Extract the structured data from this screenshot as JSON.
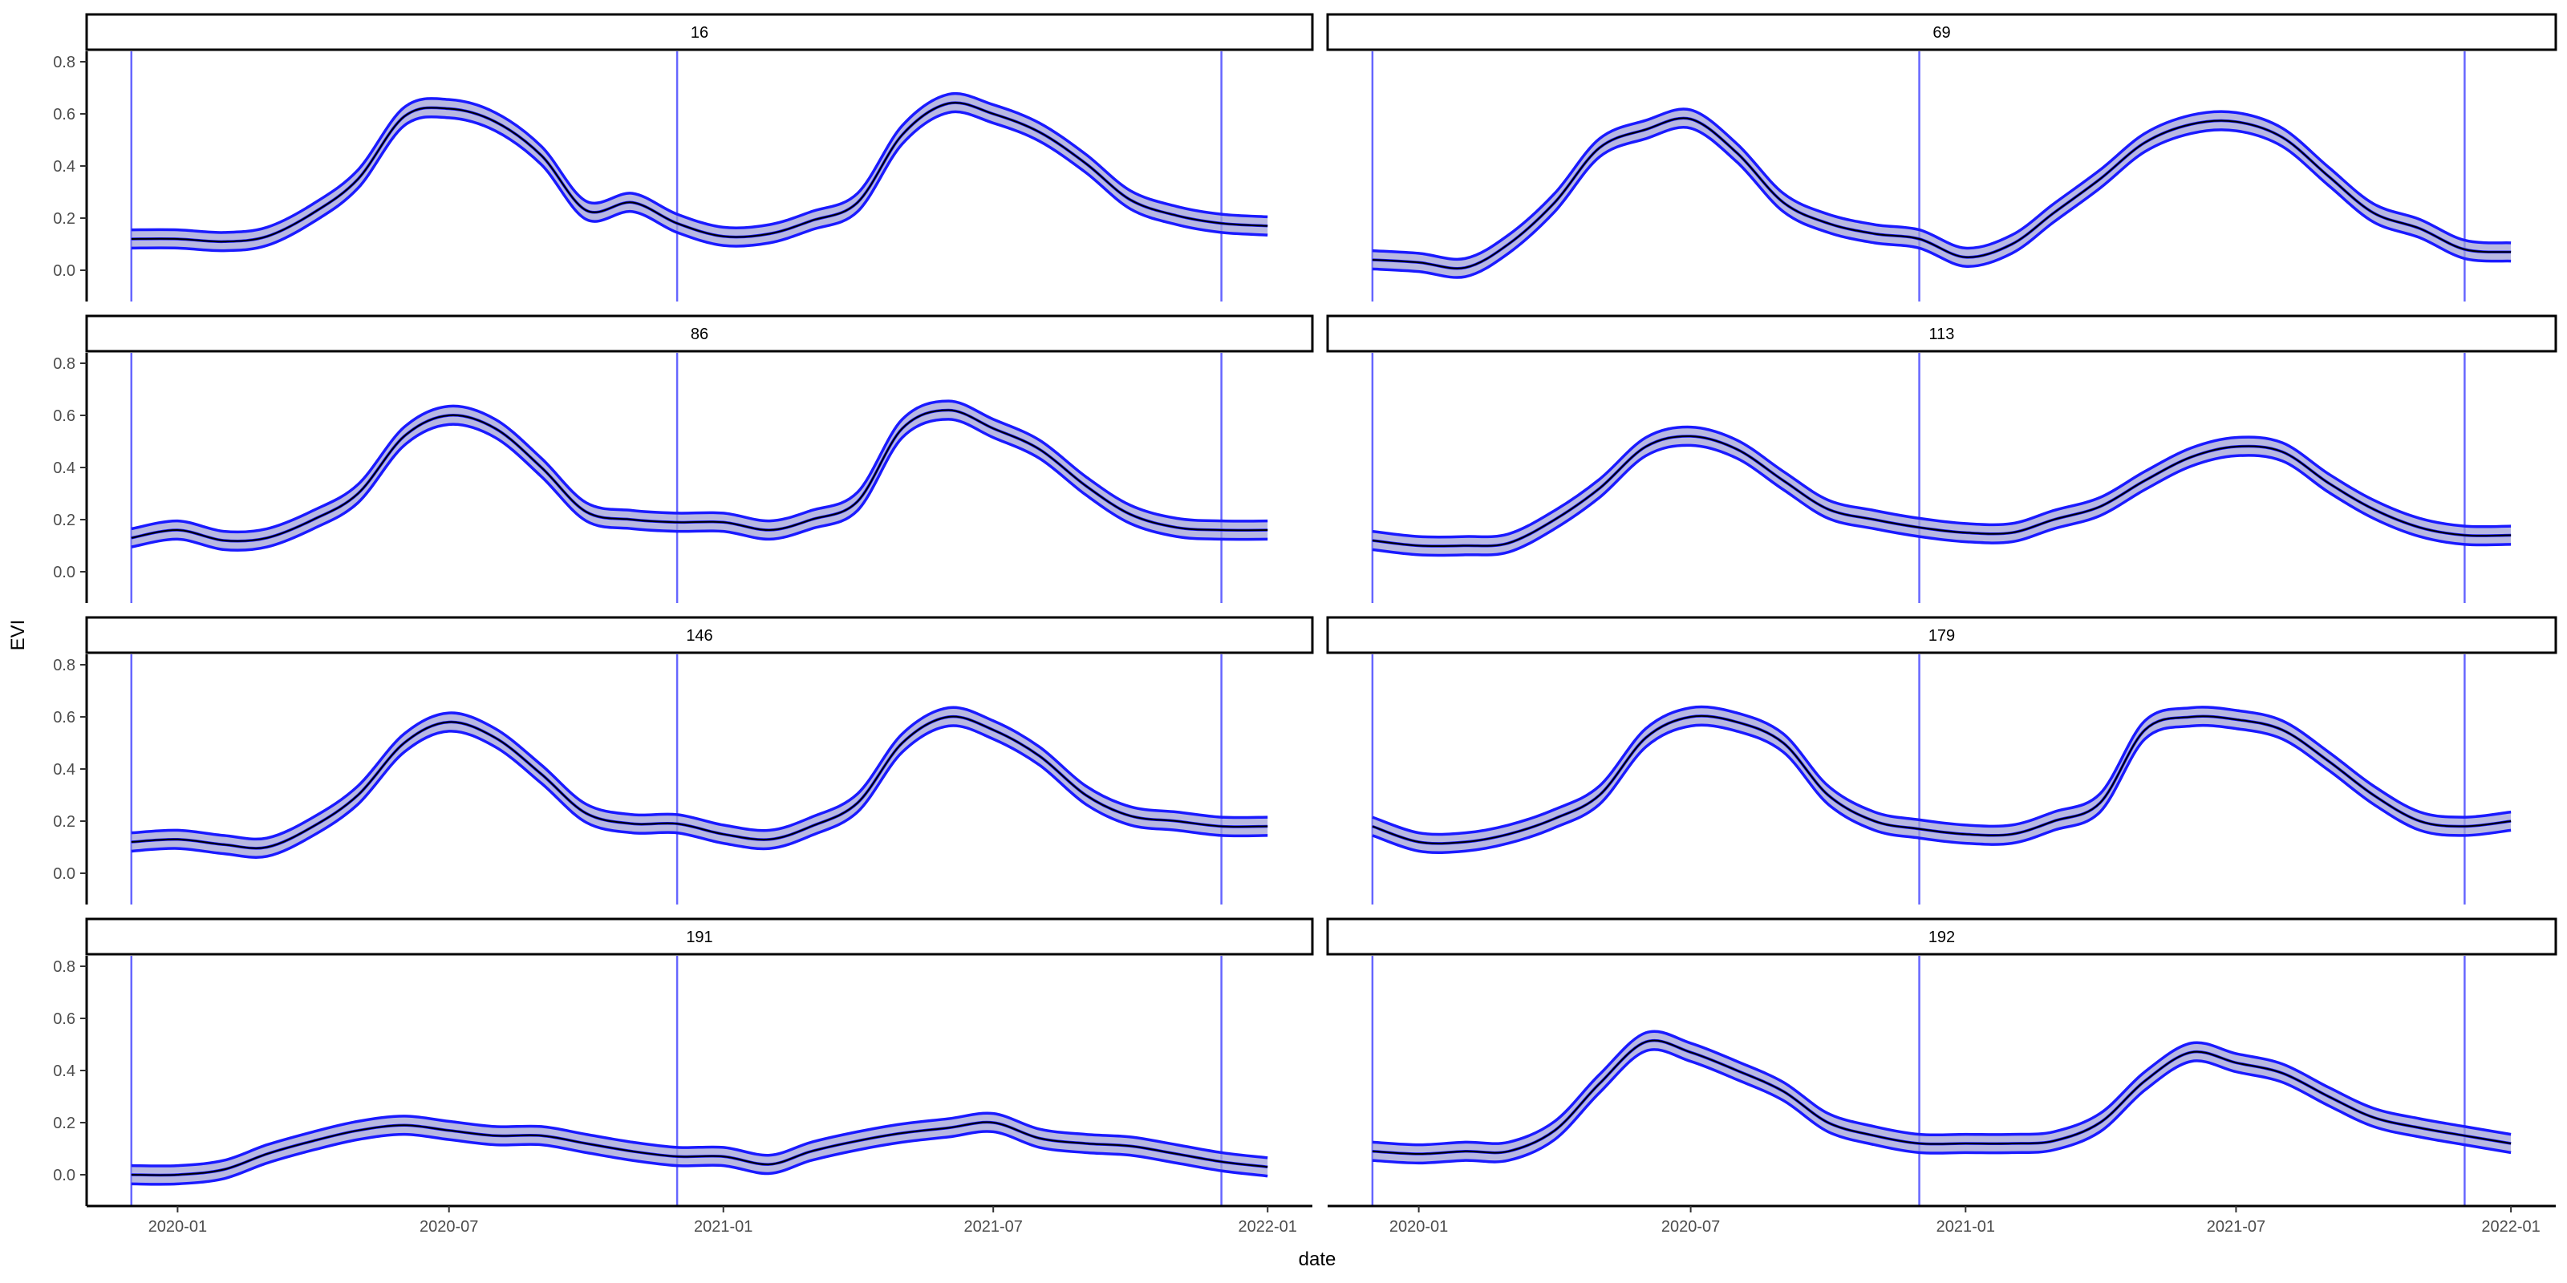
{
  "chart_data": {
    "type": "line",
    "xlabel": "date",
    "ylabel": "EVI",
    "x_tick_labels": [
      "2020-01",
      "2020-07",
      "2021-01",
      "2021-07",
      "2022-01"
    ],
    "y_tick_labels": [
      "0.0",
      "0.2",
      "0.4",
      "0.6",
      "0.8"
    ],
    "xlim": [
      "2019-11-01",
      "2022-01-31"
    ],
    "ylim": [
      -0.12,
      0.84
    ],
    "vertical_lines": [
      "2019-12-01",
      "2020-12-01",
      "2021-12-01"
    ],
    "facet_layout": "4 rows x 2 columns",
    "grid": false,
    "legend": "none",
    "colors": {
      "smooth_line": "#1a1aff",
      "band_fill": "#a0a0d8",
      "data_line": "#000000",
      "vertical_line": "#6666ff",
      "strip_border": "#000000"
    },
    "panels": [
      {
        "id": "16",
        "series": [
          {
            "x": [
              "2019-12-01",
              "2020-01-01",
              "2020-02-01",
              "2020-03-01",
              "2020-04-01",
              "2020-05-01",
              "2020-06-01",
              "2020-07-01",
              "2020-08-01",
              "2020-09-01",
              "2020-10-01",
              "2020-11-01",
              "2020-12-01",
              "2021-01-01",
              "2021-02-01",
              "2021-03-01",
              "2021-04-01",
              "2021-05-01",
              "2021-06-01",
              "2021-07-01",
              "2021-08-01",
              "2021-09-01",
              "2021-10-01",
              "2021-11-01",
              "2021-12-01",
              "2022-01-01"
            ],
            "y": [
              0.12,
              0.12,
              0.11,
              0.13,
              0.22,
              0.35,
              0.59,
              0.62,
              0.57,
              0.44,
              0.23,
              0.26,
              0.18,
              0.13,
              0.14,
              0.19,
              0.26,
              0.52,
              0.64,
              0.6,
              0.53,
              0.41,
              0.27,
              0.21,
              0.18,
              0.17
            ]
          }
        ]
      },
      {
        "id": "69",
        "series": [
          {
            "x": [
              "2019-12-01",
              "2020-01-01",
              "2020-02-01",
              "2020-03-01",
              "2020-04-01",
              "2020-05-01",
              "2020-06-01",
              "2020-07-01",
              "2020-08-01",
              "2020-09-01",
              "2020-10-01",
              "2020-11-01",
              "2020-12-01",
              "2021-01-01",
              "2021-02-01",
              "2021-03-01",
              "2021-04-01",
              "2021-05-01",
              "2021-06-01",
              "2021-07-01",
              "2021-08-01",
              "2021-09-01",
              "2021-10-01",
              "2021-11-01",
              "2021-12-01",
              "2022-01-01"
            ],
            "y": [
              0.04,
              0.03,
              0.01,
              0.1,
              0.26,
              0.47,
              0.54,
              0.58,
              0.45,
              0.26,
              0.18,
              0.14,
              0.12,
              0.05,
              0.1,
              0.22,
              0.35,
              0.49,
              0.56,
              0.57,
              0.51,
              0.36,
              0.22,
              0.16,
              0.08,
              0.07
            ]
          }
        ]
      },
      {
        "id": "86",
        "series": [
          {
            "x": [
              "2019-12-01",
              "2020-01-01",
              "2020-02-01",
              "2020-03-01",
              "2020-04-01",
              "2020-05-01",
              "2020-06-01",
              "2020-07-01",
              "2020-08-01",
              "2020-09-01",
              "2020-10-01",
              "2020-11-01",
              "2020-12-01",
              "2021-01-01",
              "2021-02-01",
              "2021-03-01",
              "2021-04-01",
              "2021-05-01",
              "2021-06-01",
              "2021-07-01",
              "2021-08-01",
              "2021-09-01",
              "2021-10-01",
              "2021-11-01",
              "2021-12-01",
              "2022-01-01"
            ],
            "y": [
              0.13,
              0.16,
              0.12,
              0.13,
              0.2,
              0.3,
              0.52,
              0.6,
              0.55,
              0.4,
              0.23,
              0.2,
              0.19,
              0.19,
              0.16,
              0.2,
              0.27,
              0.55,
              0.62,
              0.55,
              0.47,
              0.33,
              0.22,
              0.17,
              0.16,
              0.16
            ]
          }
        ]
      },
      {
        "id": "113",
        "series": [
          {
            "x": [
              "2019-12-01",
              "2020-01-01",
              "2020-02-01",
              "2020-03-01",
              "2020-04-01",
              "2020-05-01",
              "2020-06-01",
              "2020-07-01",
              "2020-08-01",
              "2020-09-01",
              "2020-10-01",
              "2020-11-01",
              "2020-12-01",
              "2021-01-01",
              "2021-02-01",
              "2021-03-01",
              "2021-04-01",
              "2021-05-01",
              "2021-06-01",
              "2021-07-01",
              "2021-08-01",
              "2021-09-01",
              "2021-10-01",
              "2021-11-01",
              "2021-12-01",
              "2022-01-01"
            ],
            "y": [
              0.12,
              0.1,
              0.1,
              0.11,
              0.2,
              0.32,
              0.48,
              0.52,
              0.47,
              0.35,
              0.24,
              0.2,
              0.17,
              0.15,
              0.15,
              0.2,
              0.25,
              0.35,
              0.44,
              0.48,
              0.46,
              0.34,
              0.24,
              0.17,
              0.14,
              0.14
            ]
          }
        ]
      },
      {
        "id": "146",
        "series": [
          {
            "x": [
              "2019-12-01",
              "2020-01-01",
              "2020-02-01",
              "2020-03-01",
              "2020-04-01",
              "2020-05-01",
              "2020-06-01",
              "2020-07-01",
              "2020-08-01",
              "2020-09-01",
              "2020-10-01",
              "2020-11-01",
              "2020-12-01",
              "2021-01-01",
              "2021-02-01",
              "2021-03-01",
              "2021-04-01",
              "2021-05-01",
              "2021-06-01",
              "2021-07-01",
              "2021-08-01",
              "2021-09-01",
              "2021-10-01",
              "2021-11-01",
              "2021-12-01",
              "2022-01-01"
            ],
            "y": [
              0.12,
              0.13,
              0.11,
              0.1,
              0.18,
              0.3,
              0.5,
              0.58,
              0.52,
              0.38,
              0.23,
              0.19,
              0.19,
              0.15,
              0.13,
              0.18,
              0.27,
              0.5,
              0.6,
              0.55,
              0.45,
              0.3,
              0.22,
              0.2,
              0.18,
              0.18
            ]
          }
        ]
      },
      {
        "id": "179",
        "series": [
          {
            "x": [
              "2019-12-01",
              "2020-01-01",
              "2020-02-01",
              "2020-03-01",
              "2020-04-01",
              "2020-05-01",
              "2020-06-01",
              "2020-07-01",
              "2020-08-01",
              "2020-09-01",
              "2020-10-01",
              "2020-11-01",
              "2020-12-01",
              "2021-01-01",
              "2021-02-01",
              "2021-03-01",
              "2021-04-01",
              "2021-05-01",
              "2021-06-01",
              "2021-07-01",
              "2021-08-01",
              "2021-09-01",
              "2021-10-01",
              "2021-11-01",
              "2021-12-01",
              "2022-01-01"
            ],
            "y": [
              0.18,
              0.12,
              0.12,
              0.15,
              0.21,
              0.3,
              0.52,
              0.6,
              0.58,
              0.5,
              0.3,
              0.2,
              0.17,
              0.15,
              0.15,
              0.2,
              0.27,
              0.55,
              0.6,
              0.59,
              0.55,
              0.43,
              0.3,
              0.2,
              0.18,
              0.2
            ]
          }
        ]
      },
      {
        "id": "191",
        "series": [
          {
            "x": [
              "2019-12-01",
              "2020-01-01",
              "2020-02-01",
              "2020-03-01",
              "2020-04-01",
              "2020-05-01",
              "2020-06-01",
              "2020-07-01",
              "2020-08-01",
              "2020-09-01",
              "2020-10-01",
              "2020-11-01",
              "2020-12-01",
              "2021-01-01",
              "2021-02-01",
              "2021-03-01",
              "2021-04-01",
              "2021-05-01",
              "2021-06-01",
              "2021-07-01",
              "2021-08-01",
              "2021-09-01",
              "2021-10-01",
              "2021-11-01",
              "2021-12-01",
              "2022-01-01"
            ],
            "y": [
              0.0,
              0.0,
              0.02,
              0.08,
              0.13,
              0.17,
              0.19,
              0.17,
              0.15,
              0.15,
              0.12,
              0.09,
              0.07,
              0.07,
              0.04,
              0.09,
              0.13,
              0.16,
              0.18,
              0.2,
              0.14,
              0.12,
              0.11,
              0.08,
              0.05,
              0.03
            ]
          }
        ]
      },
      {
        "id": "192",
        "series": [
          {
            "x": [
              "2019-12-01",
              "2020-01-01",
              "2020-02-01",
              "2020-03-01",
              "2020-04-01",
              "2020-05-01",
              "2020-06-01",
              "2020-07-01",
              "2020-08-01",
              "2020-09-01",
              "2020-10-01",
              "2020-11-01",
              "2020-12-01",
              "2021-01-01",
              "2021-02-01",
              "2021-03-01",
              "2021-04-01",
              "2021-05-01",
              "2021-06-01",
              "2021-07-01",
              "2021-08-01",
              "2021-09-01",
              "2021-10-01",
              "2021-11-01",
              "2021-12-01",
              "2022-01-01"
            ],
            "y": [
              0.09,
              0.08,
              0.09,
              0.09,
              0.17,
              0.35,
              0.51,
              0.47,
              0.4,
              0.32,
              0.2,
              0.15,
              0.12,
              0.12,
              0.12,
              0.13,
              0.2,
              0.36,
              0.47,
              0.43,
              0.39,
              0.3,
              0.22,
              0.18,
              0.15,
              0.12
            ]
          }
        ]
      }
    ]
  }
}
